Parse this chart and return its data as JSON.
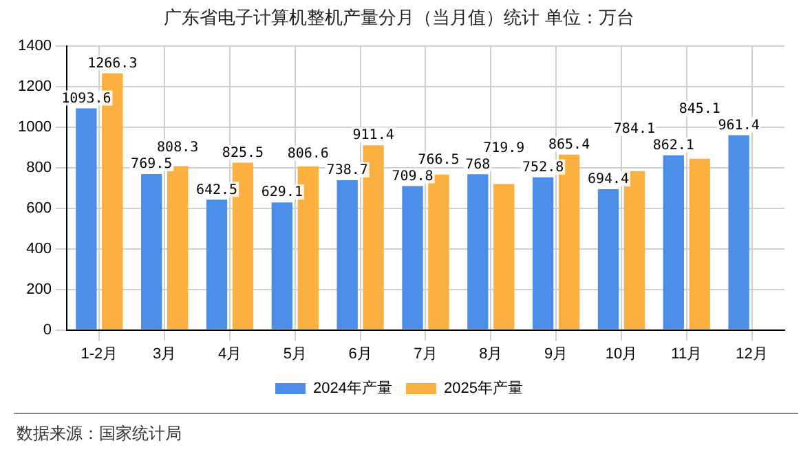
{
  "chart_data": {
    "type": "bar",
    "title": "广东省电子计算机整机产量分月（当月值）统计 单位：万台",
    "categories": [
      "1-2月",
      "3月",
      "4月",
      "5月",
      "6月",
      "7月",
      "8月",
      "9月",
      "10月",
      "11月",
      "12月"
    ],
    "series": [
      {
        "name": "2024年产量",
        "color": "#4a8ee8",
        "values": [
          1093.6,
          769.5,
          642.5,
          629.1,
          738.7,
          709.8,
          768,
          752.8,
          694.4,
          862.1,
          961.4
        ]
      },
      {
        "name": "2025年产量",
        "color": "#fbb040",
        "values": [
          1266.3,
          808.3,
          825.5,
          806.6,
          911.4,
          766.5,
          719.9,
          865.4,
          784.1,
          845.1,
          null
        ]
      }
    ],
    "ylim": [
      0,
      1400
    ],
    "yticks": [
      0,
      200,
      400,
      600,
      800,
      1000,
      1200,
      1400
    ],
    "grid": true,
    "legend": "bottom",
    "data_labels": true,
    "annotations": [
      "数据来源：国家统计局"
    ]
  }
}
